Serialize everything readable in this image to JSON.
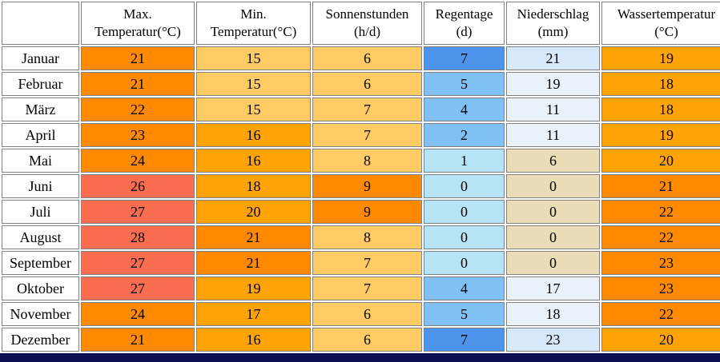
{
  "table": {
    "corner": "",
    "headers": [
      {
        "key": "max-temp",
        "label": "Max.\nTemperatur(°C)"
      },
      {
        "key": "min-temp",
        "label": "Min.\nTemperatur(°C)"
      },
      {
        "key": "sun-hours",
        "label": "Sonnenstunden\n(h/d)"
      },
      {
        "key": "rain-days",
        "label": "Regentage\n(d)"
      },
      {
        "key": "precipitation",
        "label": "Niederschlag\n(mm)"
      },
      {
        "key": "water-temp",
        "label": "Wassertemperatur\n(°C)"
      }
    ],
    "rows": [
      {
        "month": "Januar",
        "cells": [
          {
            "v": "21",
            "c": "o3"
          },
          {
            "v": "15",
            "c": "o1"
          },
          {
            "v": "6",
            "c": "o1"
          },
          {
            "v": "7",
            "c": "b3"
          },
          {
            "v": "21",
            "c": "n2"
          },
          {
            "v": "19",
            "c": "o2"
          }
        ]
      },
      {
        "month": "Februar",
        "cells": [
          {
            "v": "21",
            "c": "o3"
          },
          {
            "v": "15",
            "c": "o1"
          },
          {
            "v": "6",
            "c": "o1"
          },
          {
            "v": "5",
            "c": "b2"
          },
          {
            "v": "19",
            "c": "n1"
          },
          {
            "v": "18",
            "c": "o2"
          }
        ]
      },
      {
        "month": "März",
        "cells": [
          {
            "v": "22",
            "c": "o3"
          },
          {
            "v": "15",
            "c": "o1"
          },
          {
            "v": "7",
            "c": "o1"
          },
          {
            "v": "4",
            "c": "b2"
          },
          {
            "v": "11",
            "c": "n1"
          },
          {
            "v": "18",
            "c": "o2"
          }
        ]
      },
      {
        "month": "April",
        "cells": [
          {
            "v": "23",
            "c": "o3"
          },
          {
            "v": "16",
            "c": "o2"
          },
          {
            "v": "7",
            "c": "o1"
          },
          {
            "v": "2",
            "c": "b2"
          },
          {
            "v": "11",
            "c": "n1"
          },
          {
            "v": "19",
            "c": "o2"
          }
        ]
      },
      {
        "month": "Mai",
        "cells": [
          {
            "v": "24",
            "c": "o3"
          },
          {
            "v": "16",
            "c": "o2"
          },
          {
            "v": "8",
            "c": "o1"
          },
          {
            "v": "1",
            "c": "b1"
          },
          {
            "v": "6",
            "c": "tan"
          },
          {
            "v": "20",
            "c": "o2"
          }
        ]
      },
      {
        "month": "Juni",
        "cells": [
          {
            "v": "26",
            "c": "red"
          },
          {
            "v": "18",
            "c": "o2"
          },
          {
            "v": "9",
            "c": "o3"
          },
          {
            "v": "0",
            "c": "b1"
          },
          {
            "v": "0",
            "c": "tan"
          },
          {
            "v": "21",
            "c": "o3"
          }
        ]
      },
      {
        "month": "Juli",
        "cells": [
          {
            "v": "27",
            "c": "red"
          },
          {
            "v": "20",
            "c": "o2"
          },
          {
            "v": "9",
            "c": "o3"
          },
          {
            "v": "0",
            "c": "b1"
          },
          {
            "v": "0",
            "c": "tan"
          },
          {
            "v": "22",
            "c": "o3"
          }
        ]
      },
      {
        "month": "August",
        "cells": [
          {
            "v": "28",
            "c": "red"
          },
          {
            "v": "21",
            "c": "o3"
          },
          {
            "v": "8",
            "c": "o1"
          },
          {
            "v": "0",
            "c": "b1"
          },
          {
            "v": "0",
            "c": "tan"
          },
          {
            "v": "22",
            "c": "o3"
          }
        ]
      },
      {
        "month": "September",
        "cells": [
          {
            "v": "27",
            "c": "red"
          },
          {
            "v": "21",
            "c": "o3"
          },
          {
            "v": "7",
            "c": "o1"
          },
          {
            "v": "0",
            "c": "b1"
          },
          {
            "v": "0",
            "c": "tan"
          },
          {
            "v": "23",
            "c": "o3"
          }
        ]
      },
      {
        "month": "Oktober",
        "cells": [
          {
            "v": "27",
            "c": "red"
          },
          {
            "v": "19",
            "c": "o2"
          },
          {
            "v": "7",
            "c": "o1"
          },
          {
            "v": "4",
            "c": "b2"
          },
          {
            "v": "17",
            "c": "n1"
          },
          {
            "v": "23",
            "c": "o3"
          }
        ]
      },
      {
        "month": "November",
        "cells": [
          {
            "v": "24",
            "c": "o3"
          },
          {
            "v": "17",
            "c": "o2"
          },
          {
            "v": "6",
            "c": "o1"
          },
          {
            "v": "5",
            "c": "b2"
          },
          {
            "v": "18",
            "c": "n1"
          },
          {
            "v": "22",
            "c": "o3"
          }
        ]
      },
      {
        "month": "Dezember",
        "cells": [
          {
            "v": "21",
            "c": "o3"
          },
          {
            "v": "16",
            "c": "o2"
          },
          {
            "v": "6",
            "c": "o1"
          },
          {
            "v": "7",
            "c": "b3"
          },
          {
            "v": "23",
            "c": "n2"
          },
          {
            "v": "20",
            "c": "o2"
          }
        ]
      }
    ]
  },
  "palette": {
    "o1": "#FFCB65",
    "o2": "#FFA306",
    "o3": "#FF8A00",
    "red": "#FB6D51",
    "b1": "#B6E4F7",
    "b2": "#7FC1F2",
    "b3": "#4E94EC",
    "n1": "#E9F1FB",
    "n2": "#D7E8FA",
    "tan": "#E9DCB7"
  },
  "border_color": "#808080",
  "bottom_bar_color": "#0E0E52",
  "chart_data": {
    "type": "table",
    "title": "",
    "columns": [
      "",
      "Max. Temperatur(°C)",
      "Min. Temperatur(°C)",
      "Sonnenstunden (h/d)",
      "Regentage (d)",
      "Niederschlag (mm)",
      "Wassertemperatur (°C)"
    ],
    "rows": [
      [
        "Januar",
        21,
        15,
        6,
        7,
        21,
        19
      ],
      [
        "Februar",
        21,
        15,
        6,
        5,
        19,
        18
      ],
      [
        "März",
        22,
        15,
        7,
        4,
        11,
        18
      ],
      [
        "April",
        23,
        16,
        7,
        2,
        11,
        19
      ],
      [
        "Mai",
        24,
        16,
        8,
        1,
        6,
        20
      ],
      [
        "Juni",
        26,
        18,
        9,
        0,
        0,
        21
      ],
      [
        "Juli",
        27,
        20,
        9,
        0,
        0,
        22
      ],
      [
        "August",
        28,
        21,
        8,
        0,
        0,
        22
      ],
      [
        "September",
        27,
        21,
        7,
        0,
        0,
        23
      ],
      [
        "Oktober",
        27,
        19,
        7,
        4,
        17,
        23
      ],
      [
        "November",
        24,
        17,
        6,
        5,
        18,
        22
      ],
      [
        "Dezember",
        21,
        16,
        6,
        7,
        23,
        20
      ]
    ]
  }
}
